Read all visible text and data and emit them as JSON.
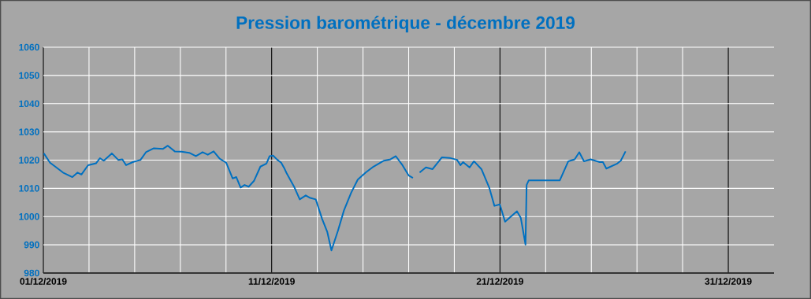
{
  "chart_data": {
    "type": "line",
    "title": "Pression barométrique - décembre 2019",
    "x": [
      "2019-12-01T00:30",
      "2019-12-01T07:00",
      "2019-12-01T12:30",
      "2019-12-01T20:40",
      "2019-12-02T06:30",
      "2019-12-02T12:00",
      "2019-12-02T16:00",
      "2019-12-02T23:00",
      "2019-12-03T07:30",
      "2019-12-03T11:30",
      "2019-12-03T15:30",
      "2019-12-04T00:00",
      "2019-12-04T06:40",
      "2019-12-04T11:00",
      "2019-12-04T15:00",
      "2019-12-04T22:00",
      "2019-12-05T06:10",
      "2019-12-05T11:50",
      "2019-12-05T20:10",
      "2019-12-06T05:50",
      "2019-12-06T10:50",
      "2019-12-06T18:10",
      "2019-12-07T01:10",
      "2019-12-07T09:20",
      "2019-12-07T16:20",
      "2019-12-07T23:20",
      "2019-12-08T04:50",
      "2019-12-08T11:00",
      "2019-12-08T17:20",
      "2019-12-09T00:10",
      "2019-12-09T07:00",
      "2019-12-09T10:50",
      "2019-12-09T15:20",
      "2019-12-09T19:30",
      "2019-12-09T23:50",
      "2019-12-10T05:20",
      "2019-12-10T12:10",
      "2019-12-10T18:30",
      "2019-12-10T21:50",
      "2019-12-11T01:30",
      "2019-12-11T06:00",
      "2019-12-11T10:00",
      "2019-12-11T13:00",
      "2019-12-11T15:40",
      "2019-12-12T00:00",
      "2019-12-12T05:30",
      "2019-12-12T11:50",
      "2019-12-12T16:30",
      "2019-12-12T22:20",
      "2019-12-13T05:00",
      "2019-12-13T10:30",
      "2019-12-13T14:50",
      "2019-12-13T21:40",
      "2019-12-14T04:00",
      "2019-12-14T11:30",
      "2019-12-14T18:30",
      "2019-12-15T02:50",
      "2019-12-15T11:00",
      "2019-12-15T22:00",
      "2019-12-16T05:00",
      "2019-12-16T10:30",
      "2019-12-16T17:30",
      "2019-12-17T00:10",
      "2019-12-17T04:30",
      "2019-12-17T09:00",
      "2019-12-17T11:30",
      "2019-12-17T18:10",
      "2019-12-18T01:10",
      "2019-12-18T11:00",
      "2019-12-18T19:10",
      "2019-12-19T02:50",
      "2019-12-19T06:30",
      "2019-12-19T09:10",
      "2019-12-19T16:00",
      "2019-12-19T20:40",
      "2019-12-20T04:30",
      "2019-12-20T12:40",
      "2019-12-20T18:10",
      "2019-12-20T23:50",
      "2019-12-21T05:20",
      "2019-12-21T17:50",
      "2019-12-21T21:50",
      "2019-12-22T02:50",
      "2019-12-22T04:00",
      "2019-12-22T06:10",
      "2019-12-23T14:50",
      "2019-12-23T23:50",
      "2019-12-24T06:30",
      "2019-12-24T11:20",
      "2019-12-24T16:20",
      "2019-12-24T23:20",
      "2019-12-25T08:50",
      "2019-12-25T12:10",
      "2019-12-25T15:50",
      "2019-12-26T02:50",
      "2019-12-26T07:00",
      "2019-12-26T12:00"
    ],
    "values": [
      1022.4,
      1019.1,
      1017.7,
      1015.6,
      1014.0,
      1015.6,
      1014.9,
      1018.2,
      1018.9,
      1020.7,
      1019.8,
      1022.4,
      1020.1,
      1020.3,
      1018.2,
      1019.3,
      1020.1,
      1022.8,
      1024.2,
      1024.0,
      1025.1,
      1023.1,
      1023.0,
      1022.6,
      1021.4,
      1022.8,
      1021.9,
      1023.1,
      1020.5,
      1019.1,
      1013.5,
      1014.0,
      1010.3,
      1011.2,
      1010.6,
      1012.6,
      1017.7,
      1018.8,
      1021.4,
      1021.6,
      1020.1,
      1019.1,
      1017.3,
      1015.4,
      1010.3,
      1006.1,
      1007.5,
      1006.6,
      1006.1,
      999.2,
      994.5,
      988.0,
      995.0,
      1002.2,
      1008.4,
      1013.1,
      1015.6,
      1017.7,
      1019.8,
      1020.3,
      1021.4,
      1018.2,
      1014.5,
      1013.7,
      null,
      1015.6,
      1017.4,
      1016.8,
      1021.0,
      1020.8,
      1020.1,
      1018.2,
      1019.3,
      1017.4,
      1019.6,
      1016.8,
      1010.3,
      1003.8,
      1004.3,
      998.2,
      1001.9,
      999.6,
      990.1,
      1011.2,
      1012.8,
      1012.8,
      1019.6,
      1020.3,
      1022.8,
      1019.6,
      1020.3,
      1019.3,
      1019.3,
      1017.0,
      1018.7,
      1019.8,
      1023.1
    ],
    "color": "#0070c0",
    "xlim": [
      "2019-12-01",
      "2020-01-02"
    ],
    "xticks": [
      {
        "value": "2019-12-01",
        "label": "01/12/2019"
      },
      {
        "value": "2019-12-03",
        "label": null
      },
      {
        "value": "2019-12-05",
        "label": null
      },
      {
        "value": "2019-12-07",
        "label": null
      },
      {
        "value": "2019-12-09",
        "label": null
      },
      {
        "value": "2019-12-11",
        "label": "11/12/2019"
      },
      {
        "value": "2019-12-13",
        "label": null
      },
      {
        "value": "2019-12-15",
        "label": null
      },
      {
        "value": "2019-12-17",
        "label": null
      },
      {
        "value": "2019-12-19",
        "label": null
      },
      {
        "value": "2019-12-21",
        "label": "21/12/2019"
      },
      {
        "value": "2019-12-23",
        "label": null
      },
      {
        "value": "2019-12-25",
        "label": null
      },
      {
        "value": "2019-12-27",
        "label": null
      },
      {
        "value": "2019-12-29",
        "label": null
      },
      {
        "value": "2019-12-31",
        "label": "31/12/2019"
      }
    ],
    "ylim": [
      980,
      1060
    ],
    "yticks": [
      980,
      990,
      1000,
      1010,
      1020,
      1030,
      1040,
      1050,
      1060
    ],
    "grid": true,
    "legend": false,
    "marker": "none",
    "line_style": "solid"
  }
}
